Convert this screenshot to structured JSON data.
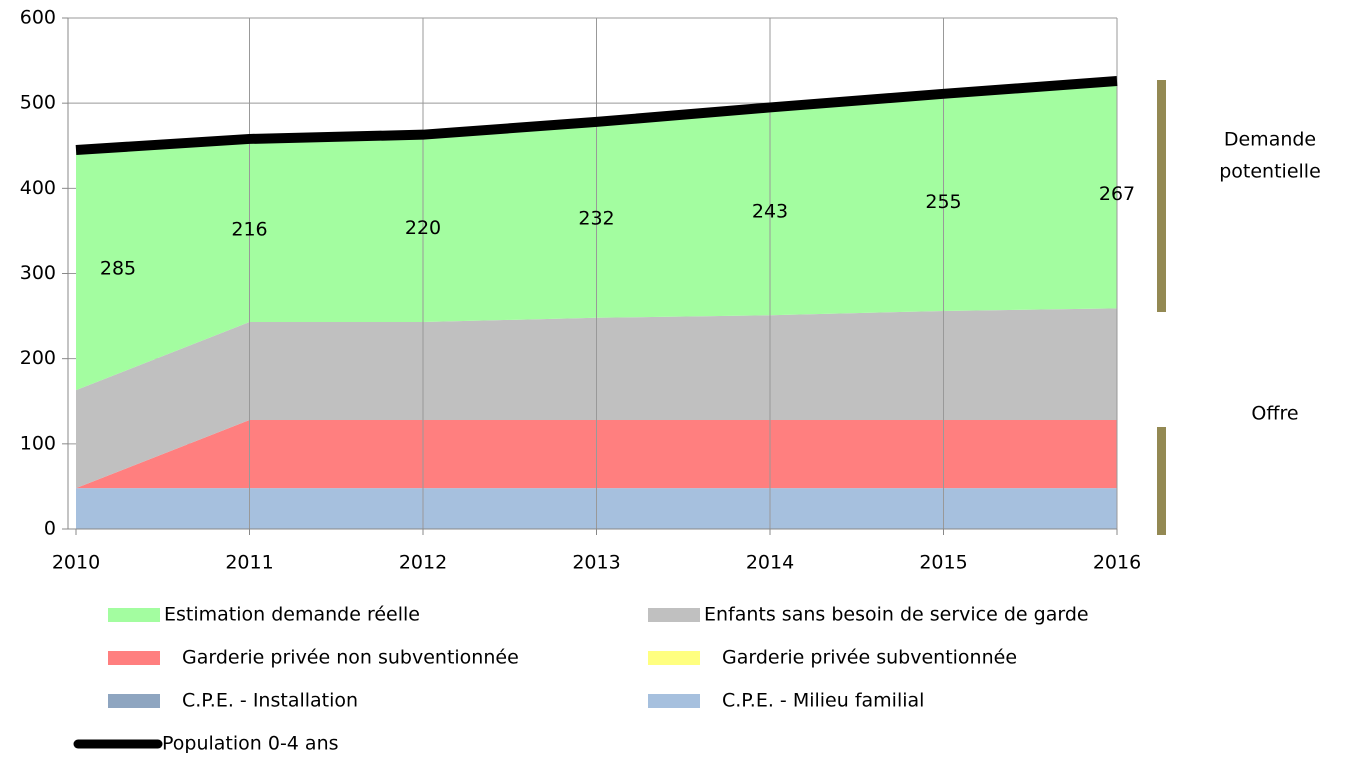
{
  "chart_data": {
    "type": "stacked-area",
    "x": [
      2010,
      2011,
      2012,
      2013,
      2014,
      2015,
      2016
    ],
    "xlim": [
      2010,
      2016
    ],
    "xticks": [
      2010,
      2011,
      2012,
      2013,
      2014,
      2015,
      2016
    ],
    "ylim": [
      0,
      600
    ],
    "yticks": [
      0,
      100,
      200,
      300,
      400,
      500,
      600
    ],
    "grid": true,
    "series": [
      {
        "name": "Estimation demande réelle",
        "color": "#a3fda0",
        "values": [
          285,
          216,
          220,
          232,
          243,
          255,
          267
        ]
      },
      {
        "name": "Enfants sans besoin de service de garde",
        "color": "#c0c0c0",
        "values": [
          115,
          115,
          115,
          120,
          123,
          128,
          131
        ]
      },
      {
        "name": "Garderie privée non subventionnée",
        "color": "#ff7f7f",
        "values": [
          0,
          80,
          80,
          80,
          80,
          80,
          80
        ]
      },
      {
        "name": "Garderie privée subventionnée",
        "color": "#ffff80",
        "values": [
          0,
          0,
          0,
          0,
          0,
          0,
          0
        ]
      },
      {
        "name": "C.P.E. - Installation",
        "color": "#8ea5c0",
        "values": [
          0,
          0,
          0,
          0,
          0,
          0,
          0
        ]
      },
      {
        "name": "C.P.E. - Milieu familial",
        "color": "#a6c0de",
        "values": [
          48,
          48,
          48,
          48,
          48,
          48,
          48
        ]
      },
      {
        "name": "Population 0-4 ans",
        "color": "#000000",
        "type": "line",
        "values": [
          445,
          458,
          463,
          478,
          495,
          511,
          526
        ]
      }
    ],
    "annotations": [
      "Demande",
      "potentielle",
      "Offre"
    ]
  }
}
